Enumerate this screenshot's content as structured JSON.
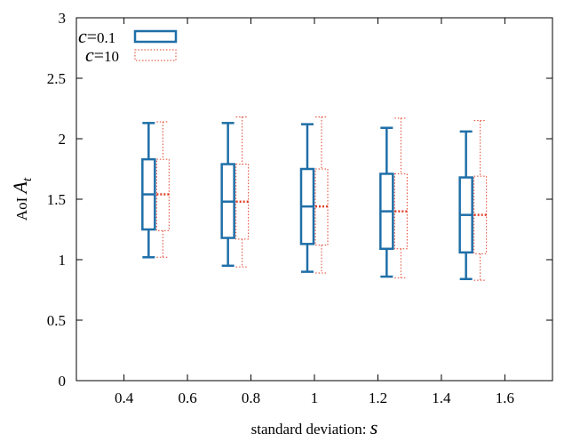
{
  "chart_data": {
    "type": "boxplot",
    "title": "",
    "xlabel": "standard deviation: ",
    "xlabel_var": "s",
    "ylabel": "AoI ",
    "ylabel_var": "A",
    "ylabel_sub": "t",
    "xlim": [
      0.25,
      1.75
    ],
    "ylim": [
      0,
      3
    ],
    "x_ticks": [
      "0.4",
      "0.6",
      "0.8",
      "1",
      "1.2",
      "1.4",
      "1.6"
    ],
    "y_ticks": [
      "0",
      "0.5",
      "1",
      "1.5",
      "2",
      "2.5",
      "3"
    ],
    "x": [
      0.5,
      0.75,
      1.0,
      1.25,
      1.5
    ],
    "grid": false,
    "legend_position": "top-left",
    "series": [
      {
        "name": "c=0.1",
        "legend_var": "c",
        "legend_op": "=",
        "legend_val": "0.1",
        "color": "#1f6fa8",
        "style": "solid",
        "boxes": [
          {
            "x": 0.5,
            "min": 1.02,
            "q1": 1.25,
            "median": 1.54,
            "q3": 1.83,
            "max": 2.13
          },
          {
            "x": 0.75,
            "min": 0.95,
            "q1": 1.18,
            "median": 1.48,
            "q3": 1.79,
            "max": 2.13
          },
          {
            "x": 1.0,
            "min": 0.9,
            "q1": 1.13,
            "median": 1.44,
            "q3": 1.75,
            "max": 2.12
          },
          {
            "x": 1.25,
            "min": 0.86,
            "q1": 1.09,
            "median": 1.4,
            "q3": 1.71,
            "max": 2.09
          },
          {
            "x": 1.5,
            "min": 0.84,
            "q1": 1.06,
            "median": 1.37,
            "q3": 1.68,
            "max": 2.06
          }
        ]
      },
      {
        "name": "c=10",
        "legend_var": "c",
        "legend_op": "=",
        "legend_val": "10",
        "color": "#e0402a",
        "style": "dotted",
        "boxes": [
          {
            "x": 0.5,
            "min": 1.02,
            "q1": 1.24,
            "median": 1.54,
            "q3": 1.83,
            "max": 2.14
          },
          {
            "x": 0.75,
            "min": 0.94,
            "q1": 1.17,
            "median": 1.48,
            "q3": 1.79,
            "max": 2.18
          },
          {
            "x": 1.0,
            "min": 0.89,
            "q1": 1.12,
            "median": 1.44,
            "q3": 1.75,
            "max": 2.18
          },
          {
            "x": 1.25,
            "min": 0.85,
            "q1": 1.09,
            "median": 1.4,
            "q3": 1.71,
            "max": 2.17
          },
          {
            "x": 1.5,
            "min": 0.83,
            "q1": 1.05,
            "median": 1.37,
            "q3": 1.69,
            "max": 2.15
          }
        ]
      }
    ]
  }
}
